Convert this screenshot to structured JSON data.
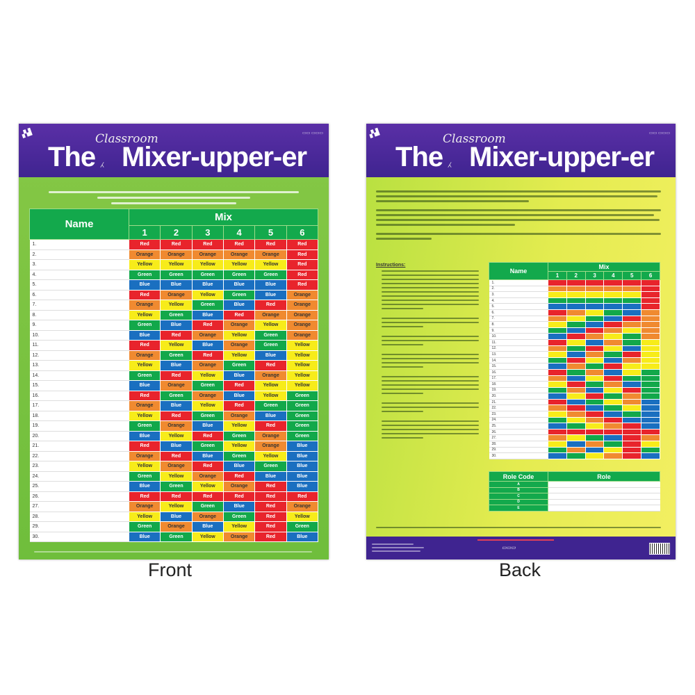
{
  "poster": {
    "title_the": "The",
    "title_insert": "Classroom",
    "title_main": "Mixer-upper-er",
    "name_header": "Name",
    "mix_header": "Mix",
    "mix_columns": [
      "1",
      "2",
      "3",
      "4",
      "5",
      "6"
    ],
    "role_code_header": "Role Code",
    "role_header": "Role",
    "role_codes": [
      "A",
      "B",
      "C",
      "D",
      "E"
    ],
    "instructions_heading": "Instructions:"
  },
  "captions": {
    "front": "Front",
    "back": "Back"
  },
  "colors": {
    "Red": "#e8242c",
    "Orange": "#f08a30",
    "Yellow": "#f7ec1a",
    "Green": "#12a84a",
    "Blue": "#1a6fc0",
    "header_purple": "#4b2a9a"
  },
  "grid": [
    [
      "Red",
      "Red",
      "Red",
      "Red",
      "Red",
      "Red"
    ],
    [
      "Orange",
      "Orange",
      "Orange",
      "Orange",
      "Orange",
      "Red"
    ],
    [
      "Yellow",
      "Yellow",
      "Yellow",
      "Yellow",
      "Yellow",
      "Red"
    ],
    [
      "Green",
      "Green",
      "Green",
      "Green",
      "Green",
      "Red"
    ],
    [
      "Blue",
      "Blue",
      "Blue",
      "Blue",
      "Blue",
      "Red"
    ],
    [
      "Red",
      "Orange",
      "Yellow",
      "Green",
      "Blue",
      "Orange"
    ],
    [
      "Orange",
      "Yellow",
      "Green",
      "Blue",
      "Red",
      "Orange"
    ],
    [
      "Yellow",
      "Green",
      "Blue",
      "Red",
      "Orange",
      "Orange"
    ],
    [
      "Green",
      "Blue",
      "Red",
      "Orange",
      "Yellow",
      "Orange"
    ],
    [
      "Blue",
      "Red",
      "Orange",
      "Yellow",
      "Green",
      "Orange"
    ],
    [
      "Red",
      "Yellow",
      "Blue",
      "Orange",
      "Green",
      "Yellow"
    ],
    [
      "Orange",
      "Green",
      "Red",
      "Yellow",
      "Blue",
      "Yellow"
    ],
    [
      "Yellow",
      "Blue",
      "Orange",
      "Green",
      "Red",
      "Yellow"
    ],
    [
      "Green",
      "Red",
      "Yellow",
      "Blue",
      "Orange",
      "Yellow"
    ],
    [
      "Blue",
      "Orange",
      "Green",
      "Red",
      "Yellow",
      "Yellow"
    ],
    [
      "Red",
      "Green",
      "Orange",
      "Blue",
      "Yellow",
      "Green"
    ],
    [
      "Orange",
      "Blue",
      "Yellow",
      "Red",
      "Green",
      "Green"
    ],
    [
      "Yellow",
      "Red",
      "Green",
      "Orange",
      "Blue",
      "Green"
    ],
    [
      "Green",
      "Orange",
      "Blue",
      "Yellow",
      "Red",
      "Green"
    ],
    [
      "Blue",
      "Yellow",
      "Red",
      "Green",
      "Orange",
      "Green"
    ],
    [
      "Red",
      "Blue",
      "Green",
      "Yellow",
      "Orange",
      "Blue"
    ],
    [
      "Orange",
      "Red",
      "Blue",
      "Green",
      "Yellow",
      "Blue"
    ],
    [
      "Yellow",
      "Orange",
      "Red",
      "Blue",
      "Green",
      "Blue"
    ],
    [
      "Green",
      "Yellow",
      "Orange",
      "Red",
      "Blue",
      "Blue"
    ],
    [
      "Blue",
      "Green",
      "Yellow",
      "Orange",
      "Red",
      "Blue"
    ],
    [
      "Red",
      "Red",
      "Red",
      "Red",
      "Red",
      "Red"
    ],
    [
      "Orange",
      "Yellow",
      "Green",
      "Blue",
      "Red",
      "Orange"
    ],
    [
      "Yellow",
      "Blue",
      "Orange",
      "Green",
      "Red",
      "Yellow"
    ],
    [
      "Green",
      "Orange",
      "Blue",
      "Yellow",
      "Red",
      "Green"
    ],
    [
      "Blue",
      "Green",
      "Yellow",
      "Orange",
      "Red",
      "Blue"
    ]
  ]
}
